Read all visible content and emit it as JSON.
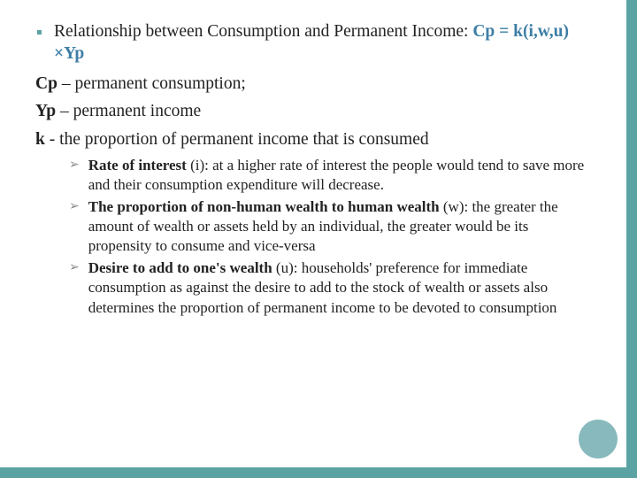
{
  "colors": {
    "border": "#5ba3a3",
    "circle": "#87b9bd",
    "formula": "#3d7ea6",
    "text": "#222222",
    "background": "#ffffff"
  },
  "main": {
    "intro_text": "Relationship between Consumption and Permanent Income: ",
    "formula": "Cp = k(i,w,u) ×Yp"
  },
  "defs": [
    {
      "sym": "Cp",
      "sep": " – ",
      "text": "permanent consumption;"
    },
    {
      "sym": "Yp",
      "sep": " – ",
      "text": "permanent income"
    },
    {
      "sym": "k",
      "sep": " - ",
      "text": "the proportion of permanent income that is consumed"
    }
  ],
  "subs": [
    {
      "lead": "Rate of interest",
      "trail": " (i): at a higher rate of interest the people would tend to save more and their consumption expenditure will decrease."
    },
    {
      "lead": "The proportion of non-human wealth to human wealth",
      "trail": " (w): the greater the amount of wealth or assets held by an individual, the greater would be its propensity to consume and vice-versa"
    },
    {
      "lead": "Desire to add to one's wealth",
      "trail": " (u): households' preference for immediate consumption as against the desire to add to the stock of wealth or assets also determines the proportion of permanent income to be devoted to consumption"
    }
  ]
}
